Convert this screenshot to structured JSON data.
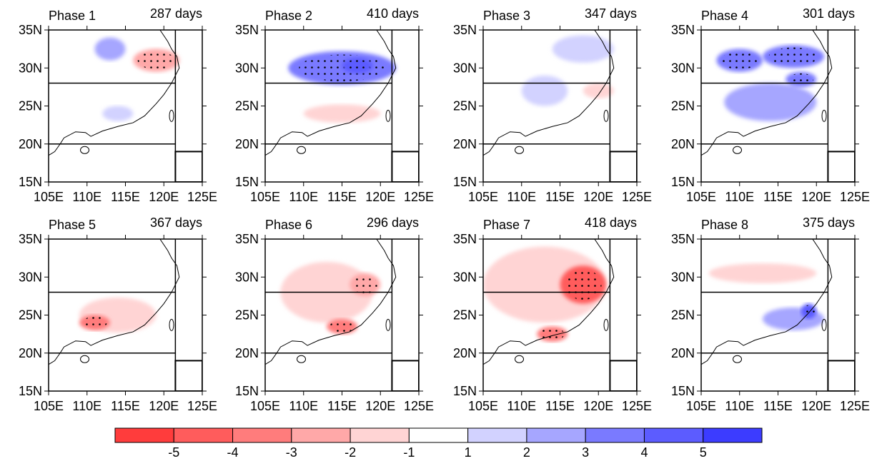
{
  "panels": [
    {
      "title": "Phase 1",
      "days": "287 days"
    },
    {
      "title": "Phase 2",
      "days": "410 days"
    },
    {
      "title": "Phase 3",
      "days": "347 days"
    },
    {
      "title": "Phase 4",
      "days": "301 days"
    },
    {
      "title": "Phase 5",
      "days": "367 days"
    },
    {
      "title": "Phase 6",
      "days": "296 days"
    },
    {
      "title": "Phase 7",
      "days": "418 days"
    },
    {
      "title": "Phase 8",
      "days": "375 days"
    }
  ],
  "x_tick_labels": [
    "105E",
    "110E",
    "115E",
    "120E",
    "125E"
  ],
  "y_tick_labels": [
    "35N",
    "30N",
    "25N",
    "20N",
    "15N"
  ],
  "colorbar": {
    "colors": [
      "#ff3c3c",
      "#ff5c5c",
      "#ff7c7c",
      "#ffa8a8",
      "#ffd4d4",
      "#ffffff",
      "#d2d2ff",
      "#a6a6ff",
      "#7a7aff",
      "#5c5cff",
      "#3c3cff"
    ],
    "labels": [
      "-5",
      "-4",
      "-3",
      "-2",
      "-1",
      "1",
      "2",
      "3",
      "4",
      "5"
    ]
  }
}
